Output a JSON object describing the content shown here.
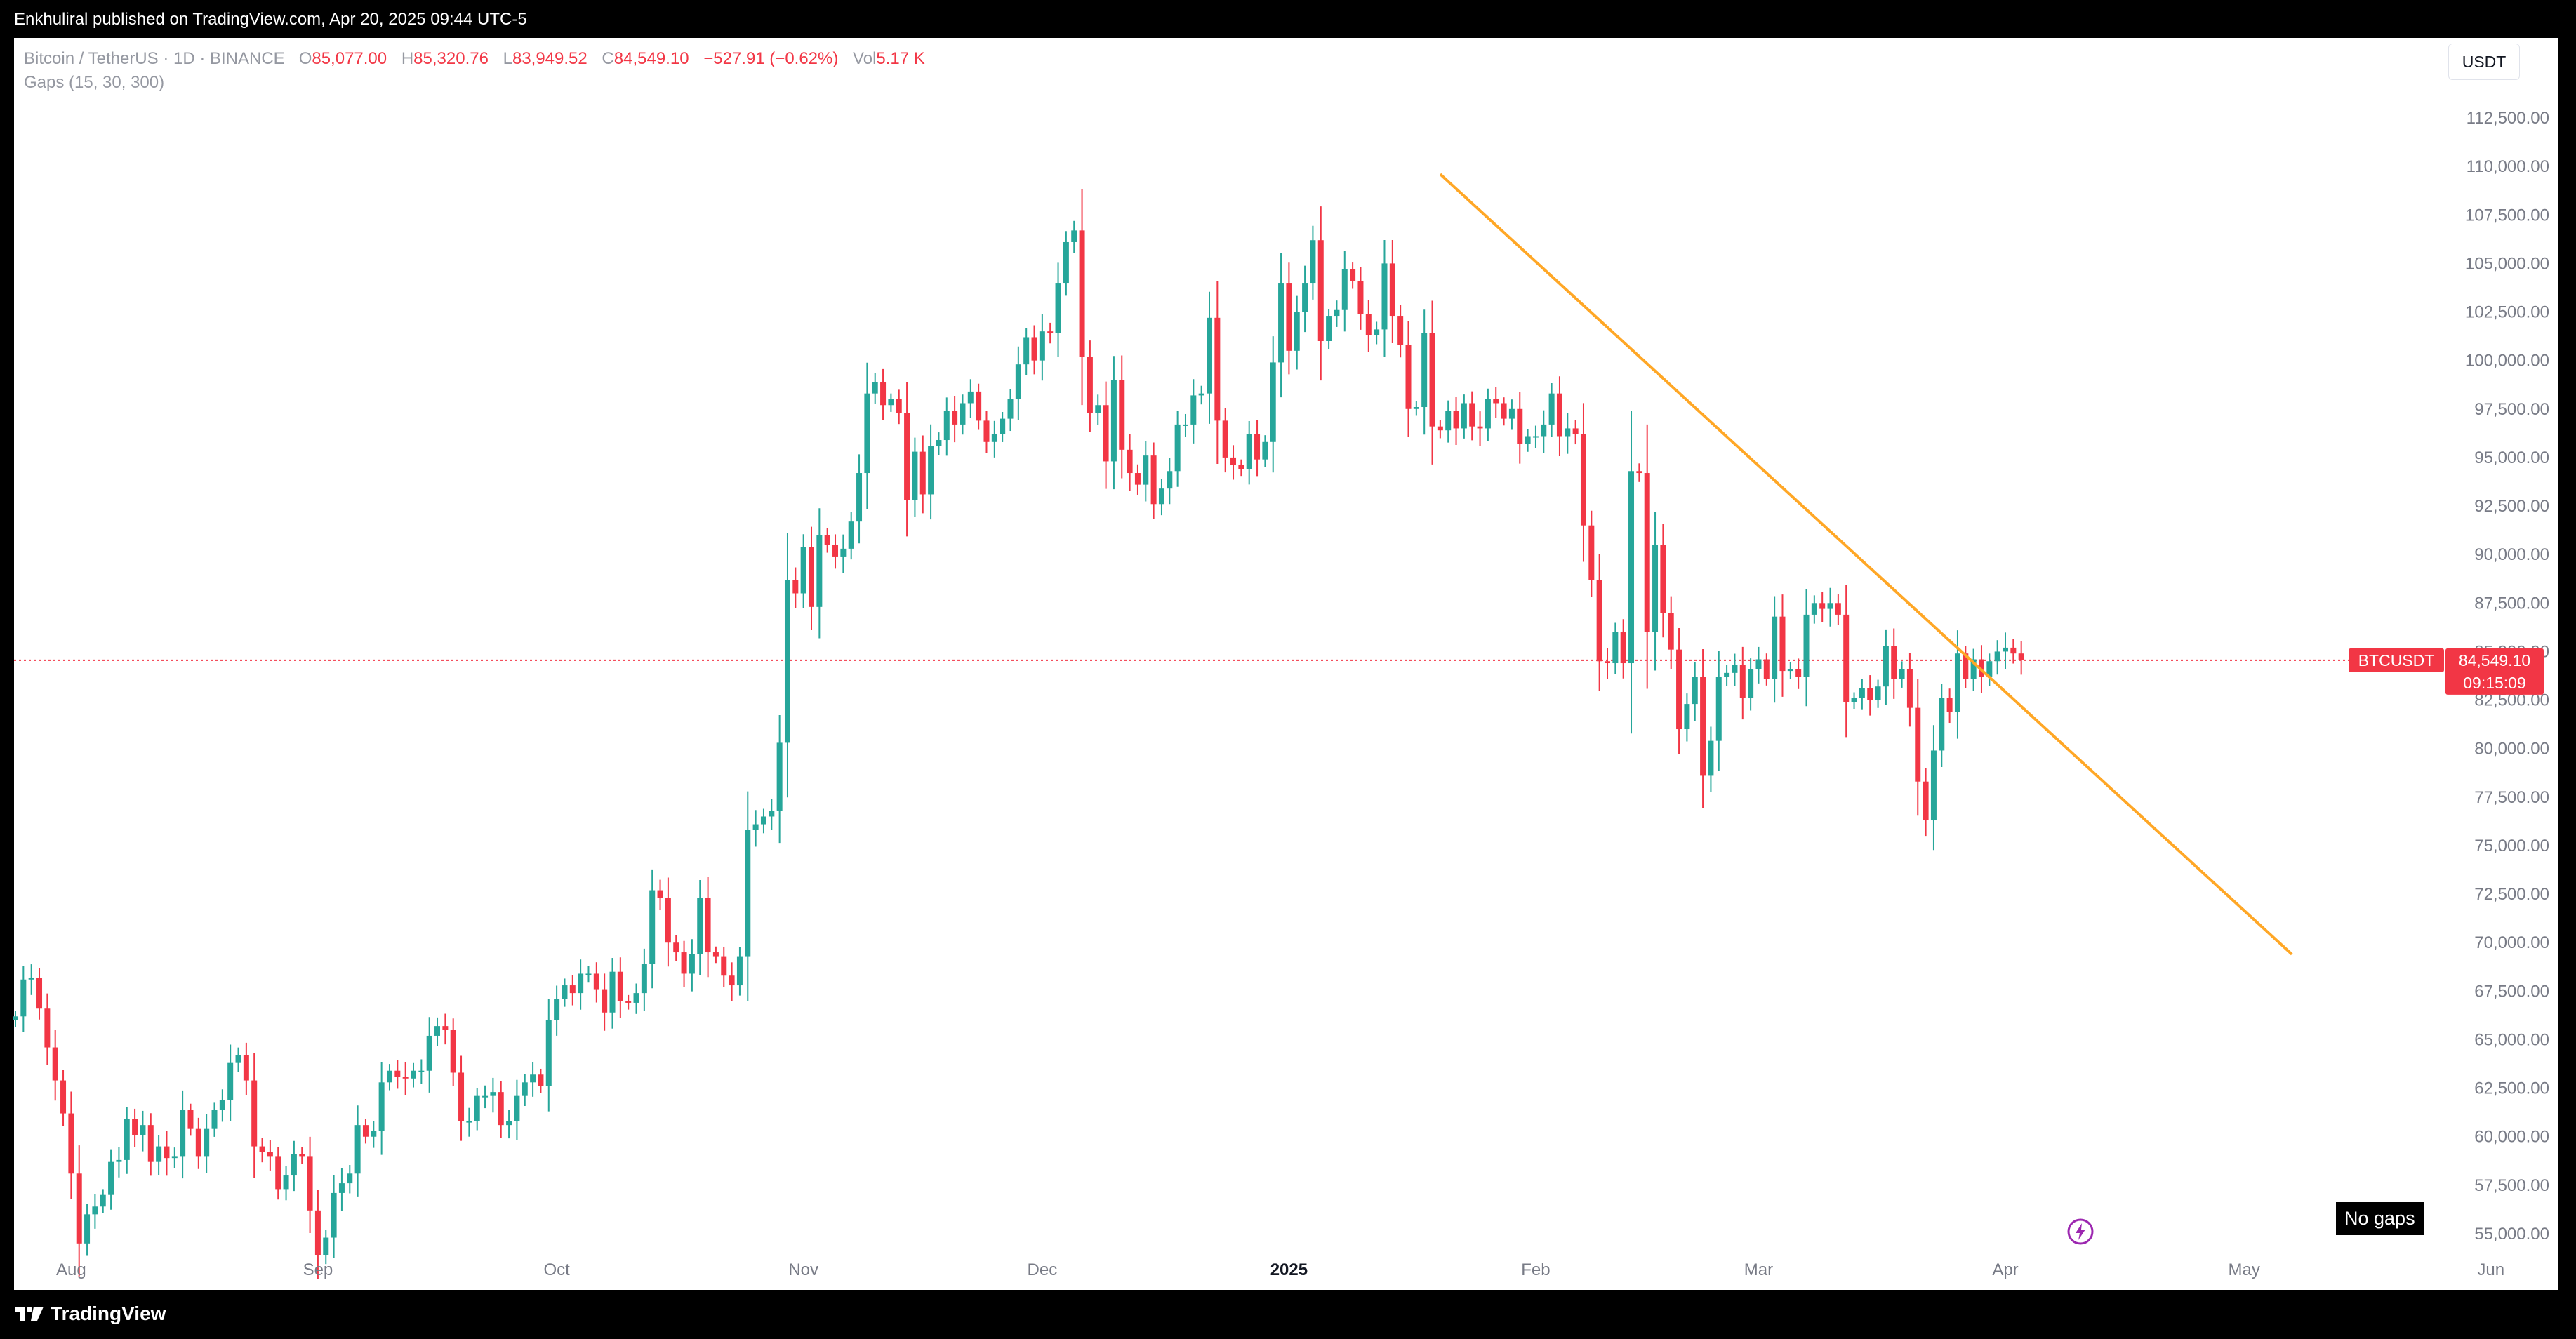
{
  "header": {
    "published": "Enkhuliral published on TradingView.com, Apr 20, 2025 09:44 UTC-5"
  },
  "legend": {
    "symbol": "Bitcoin / TetherUS · 1D · BINANCE",
    "o_label": "O",
    "o_value": "85,077.00",
    "h_label": "H",
    "h_value": "85,320.76",
    "l_label": "L",
    "l_value": "83,949.52",
    "c_label": "C",
    "c_value": "84,549.10",
    "change": "−527.91 (−0.62%)",
    "vol_label": "Vol",
    "vol_value": "5.17 K",
    "indicator": "Gaps (15, 30, 300)"
  },
  "currency_tag": "USDT",
  "price_label": {
    "symbol": "BTCUSDT",
    "price": "84,549.10",
    "countdown": "09:15:09"
  },
  "no_gaps_label": "No gaps",
  "footer": {
    "brand": "TradingView"
  },
  "colors": {
    "up": "#26a69a",
    "down": "#f23645",
    "trendline": "#ffa726",
    "price_line": "#f23645",
    "lightning": "#9c27b0"
  },
  "chart_data": {
    "type": "candlestick",
    "title": "Bitcoin / TetherUS · 1D · BINANCE",
    "ylim": [
      53500,
      114500
    ],
    "y_ticks": [
      "112,500.00",
      "110,000.00",
      "107,500.00",
      "105,000.00",
      "102,500.00",
      "100,000.00",
      "97,500.00",
      "95,000.00",
      "92,500.00",
      "90,000.00",
      "87,500.00",
      "85,000.00",
      "82,500.00",
      "80,000.00",
      "77,500.00",
      "75,000.00",
      "72,500.00",
      "70,000.00",
      "67,500.00",
      "65,000.00",
      "62,500.00",
      "60,000.00",
      "57,500.00",
      "55,000.00"
    ],
    "x_labels": [
      {
        "label": "Aug",
        "date": "2024-08-01"
      },
      {
        "label": "Sep",
        "date": "2024-09-01"
      },
      {
        "label": "Oct",
        "date": "2024-10-01"
      },
      {
        "label": "Nov",
        "date": "2024-11-01"
      },
      {
        "label": "Dec",
        "date": "2024-12-01"
      },
      {
        "label": "2025",
        "date": "2025-01-01",
        "bold": true
      },
      {
        "label": "Feb",
        "date": "2025-02-01"
      },
      {
        "label": "Mar",
        "date": "2025-03-01"
      },
      {
        "label": "Apr",
        "date": "2025-04-01"
      },
      {
        "label": "May",
        "date": "2025-05-01"
      },
      {
        "label": "Jun",
        "date": "2025-06-01"
      }
    ],
    "first_date": "2024-07-25",
    "last_price": 84549.1,
    "trendline": [
      {
        "date": "2025-01-20",
        "price": 109600
      },
      {
        "date": "2025-05-07",
        "price": 69400
      }
    ],
    "closes": [
      66200,
      68100,
      68200,
      66600,
      64600,
      62900,
      61200,
      58100,
      54500,
      56000,
      56400,
      57000,
      58700,
      58800,
      60900,
      60100,
      60600,
      58700,
      59500,
      58900,
      59000,
      61400,
      60400,
      59000,
      60400,
      61400,
      61900,
      63800,
      64200,
      62900,
      59500,
      59200,
      59000,
      57300,
      58000,
      59100,
      59000,
      56200,
      53900,
      54800,
      57100,
      57600,
      58100,
      60600,
      60000,
      60300,
      62800,
      63400,
      63100,
      63000,
      63400,
      63400,
      65200,
      65700,
      65500,
      63300,
      60800,
      60800,
      62100,
      62100,
      62300,
      60600,
      60800,
      62100,
      62800,
      63200,
      62600,
      66000,
      67100,
      67800,
      67400,
      68400,
      68400,
      67600,
      66400,
      68500,
      67000,
      66900,
      67400,
      68900,
      72700,
      72300,
      70000,
      69500,
      68400,
      69400,
      72300,
      69500,
      69300,
      68300,
      67800,
      69300,
      75800,
      76100,
      76500,
      76800,
      80300,
      88700,
      88000,
      90400,
      87300,
      91000,
      90500,
      89900,
      90300,
      91700,
      94200,
      98300,
      98900,
      97700,
      98000,
      97300,
      92800,
      95300,
      93100,
      95600,
      95900,
      97400,
      96700,
      97800,
      98400,
      96900,
      95800,
      96200,
      97000,
      98000,
      99800,
      101200,
      100000,
      101500,
      101400,
      104000,
      106100,
      106700,
      100200,
      97300,
      97700,
      94800,
      99000,
      95400,
      94200,
      93600,
      95100,
      92600,
      93400,
      94300,
      96700,
      96700,
      98200,
      98300,
      102200,
      96900,
      95000,
      94600,
      94400,
      96200,
      94900,
      95800,
      99900,
      104000,
      100500,
      102500,
      104000,
      106200,
      101000,
      102300,
      102600,
      104700,
      104100,
      102400,
      101300,
      101600,
      105000,
      102300,
      100800,
      97500,
      97600,
      101400,
      96600,
      96400,
      97400,
      96500,
      97800,
      96600,
      96500,
      98000,
      97800,
      97000,
      97500,
      95700,
      96100,
      96100,
      96700,
      98300,
      96100,
      96500,
      96200,
      91500,
      88700,
      84500,
      84400,
      86000,
      84400,
      94300,
      94200,
      86000,
      90500,
      87000,
      85100,
      81000,
      82300,
      83700,
      78600,
      80400,
      83700,
      83900,
      84300,
      82600,
      84100,
      84600,
      83600,
      86800,
      84000,
      84100,
      83700,
      86900,
      87500,
      87200,
      87500,
      86900,
      82400,
      82600,
      83100,
      82500,
      83200,
      85300,
      83600,
      84100,
      82100,
      78300,
      76300,
      79900,
      82600,
      81900,
      84900,
      83600,
      84600,
      83700,
      84500,
      85000,
      85200,
      84900,
      84550
    ]
  }
}
